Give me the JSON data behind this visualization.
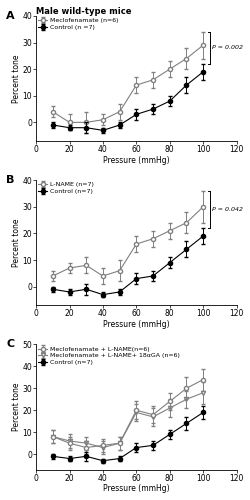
{
  "pressure": [
    10,
    20,
    30,
    40,
    50,
    60,
    70,
    80,
    90,
    100
  ],
  "panelA": {
    "title": "Male wild-type mice",
    "control_y": [
      -1,
      -2,
      -2,
      -3,
      -1,
      3,
      5,
      8,
      14,
      19
    ],
    "control_err": [
      1,
      1,
      2,
      1,
      1,
      2,
      2,
      2,
      3,
      3
    ],
    "treatment_y": [
      4,
      0,
      0,
      1,
      4,
      14,
      16,
      20,
      24,
      29
    ],
    "treatment_err": [
      2,
      3,
      4,
      2,
      3,
      3,
      3,
      3,
      4,
      5
    ],
    "treatment_label": "Meclofenamate (n=6)",
    "control_label": "Control (n =7)",
    "pvalue": "P = 0.002",
    "ylim": [
      -7,
      40
    ],
    "yticks": [
      0,
      10,
      20,
      30,
      40
    ]
  },
  "panelB": {
    "control_y": [
      -1,
      -2,
      -1,
      -3,
      -2,
      3,
      4,
      9,
      14,
      19
    ],
    "control_err": [
      1,
      1,
      2,
      1,
      1,
      2,
      2,
      2,
      3,
      3
    ],
    "treatment_y": [
      4,
      7,
      8,
      4,
      6,
      16,
      18,
      21,
      24,
      30
    ],
    "treatment_err": [
      2,
      2,
      3,
      3,
      4,
      3,
      3,
      3,
      4,
      6
    ],
    "treatment_label": "L-NAME (n=7)",
    "control_label": "Control (n=7)",
    "pvalue": "P = 0.042",
    "ylim": [
      -7,
      40
    ],
    "yticks": [
      0,
      10,
      20,
      30,
      40
    ]
  },
  "panelC": {
    "control_y": [
      -1,
      -2,
      -1,
      -3,
      -2,
      3,
      4,
      9,
      14,
      19
    ],
    "control_err": [
      1,
      1,
      2,
      1,
      1,
      2,
      2,
      2,
      3,
      3
    ],
    "treatment1_y": [
      8,
      5,
      3,
      4,
      5,
      20,
      18,
      24,
      30,
      34
    ],
    "treatment1_err": [
      3,
      3,
      3,
      3,
      3,
      4,
      4,
      4,
      5,
      5
    ],
    "treatment2_y": [
      8,
      6,
      5,
      3,
      5,
      19,
      17,
      21,
      25,
      28
    ],
    "treatment2_err": [
      3,
      3,
      3,
      3,
      3,
      4,
      4,
      4,
      4,
      5
    ],
    "treatment1_label": "Meclofenamate + L-NAME(n=6)",
    "treatment2_label": "Meclofenamate + L-NAME+ 18αGA (n=6)",
    "control_label": "Control (n=7)",
    "ylim": [
      -7,
      50
    ],
    "yticks": [
      0,
      10,
      20,
      30,
      40,
      50
    ]
  },
  "xlabel": "Pressure (mmHg)",
  "ylabel": "Percent tone",
  "xticks": [
    0,
    20,
    40,
    60,
    80,
    100,
    120
  ],
  "xlim": [
    0,
    120
  ]
}
